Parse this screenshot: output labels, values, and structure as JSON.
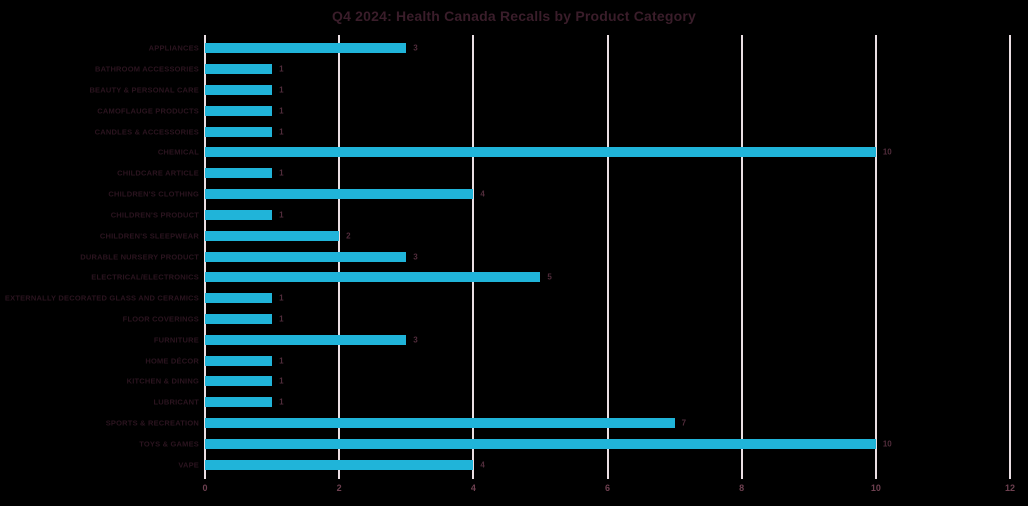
{
  "title": "Q4 2024: Health Canada Recalls by Product Category",
  "colors": {
    "background": "#000000",
    "bar": "#20B4D9",
    "gridline": "#EADFE3",
    "title_text": "#3A1D2A",
    "category_text": "#2B141F",
    "value_text": "#512C3B",
    "tick_text": "#6E4050"
  },
  "chart_data": {
    "type": "bar",
    "orientation": "horizontal",
    "title": "Q4 2024: Health Canada Recalls by Product Category",
    "categories": [
      "APPLIANCES",
      "BATHROOM ACCESSORIES",
      "BEAUTY & PERSONAL CARE",
      "CAMOFLAUGE PRODUCTS",
      "CANDLES & ACCESSORIES",
      "CHEMICAL",
      "CHILDCARE ARTICLE",
      "CHILDREN'S CLOTHING",
      "CHILDREN'S PRODUCT",
      "CHILDREN'S SLEEPWEAR",
      "DURABLE NURSERY PRODUCT",
      "ELECTRICAL/ELECTRONICS",
      "EXTERNALLY DECORATED GLASS AND CERAMICS",
      "FLOOR COVERINGS",
      "FURNITURE",
      "HOME DÉCOR",
      "KITCHEN & DINING",
      "LUBRICANT",
      "SPORTS & RECREATION",
      "TOYS & GAMES",
      "VAPE"
    ],
    "values": [
      3,
      1,
      1,
      1,
      1,
      10,
      1,
      4,
      1,
      2,
      3,
      5,
      1,
      1,
      3,
      1,
      1,
      1,
      7,
      10,
      4
    ],
    "xlabel": "",
    "ylabel": "",
    "xlim": [
      0,
      12
    ],
    "x_ticks": [
      0,
      2,
      4,
      6,
      8,
      10,
      12
    ],
    "grid": "vertical-gridlines",
    "value_labels": true,
    "legend": false
  }
}
